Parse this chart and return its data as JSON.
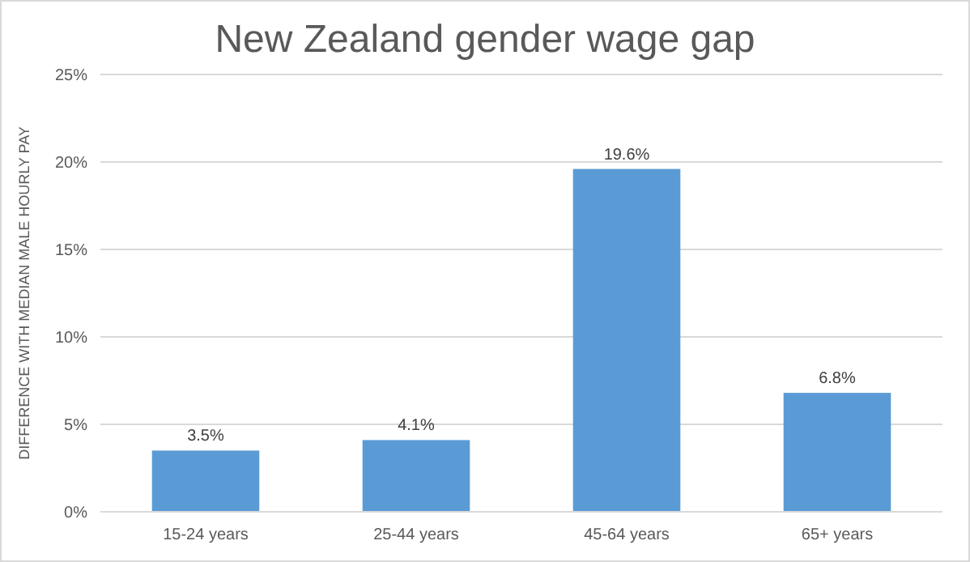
{
  "chart_data": {
    "type": "bar",
    "title": "New Zealand gender wage gap",
    "ylabel": "DIFFERENCE WITH MEDIAN MALE HOURLY PAY",
    "categories": [
      "15-24 years",
      "25-44 years",
      "45-64 years",
      "65+ years"
    ],
    "values": [
      3.5,
      4.1,
      19.6,
      6.8
    ],
    "color": "#5b9bd5",
    "value_labels": [
      "3.5%",
      "4.1%",
      "19.6%",
      "6.8%"
    ],
    "ylim": [
      0,
      25
    ],
    "yticks": [
      {
        "value": 0,
        "label": "0%"
      },
      {
        "value": 5,
        "label": "5%"
      },
      {
        "value": 10,
        "label": "10%"
      },
      {
        "value": 15,
        "label": "15%"
      },
      {
        "value": 20,
        "label": "20%"
      },
      {
        "value": 25,
        "label": "25%"
      }
    ],
    "grid": "y"
  }
}
